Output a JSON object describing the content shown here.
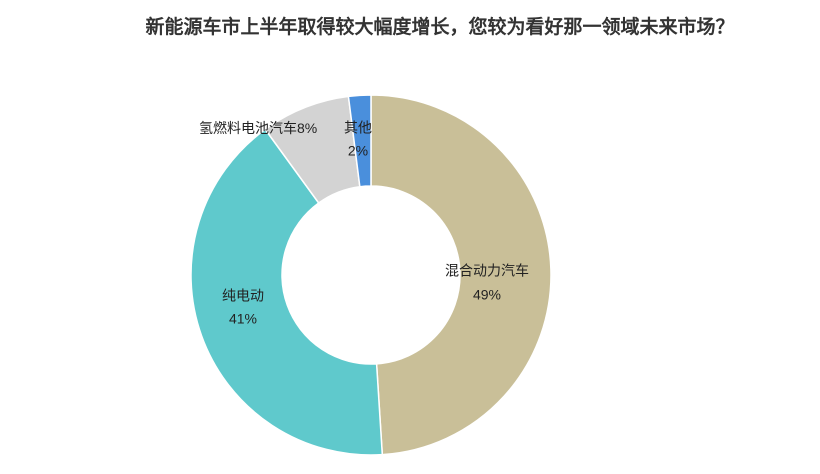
{
  "chart_data": {
    "type": "donut",
    "title": "新能源车市上半年取得较大幅度增长，您较为看好那一领域未来市场？",
    "categories": [
      "混合动力汽车",
      "纯电动",
      "氢燃料电池汽车",
      "其他"
    ],
    "values": [
      49,
      41,
      8,
      2
    ],
    "value_labels": [
      "49%",
      "41%",
      "8%",
      "2%"
    ],
    "colors": [
      "#c9bf98",
      "#5fc9cc",
      "#d3d3d3",
      "#4a8fdc"
    ]
  }
}
